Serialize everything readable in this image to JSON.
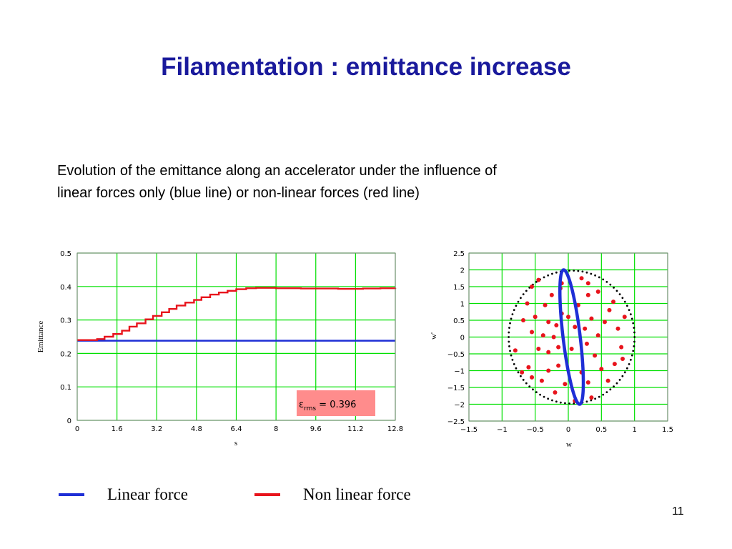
{
  "slide": {
    "title": "Filamentation : emittance increase",
    "description_lines": [
      "Evolution of the emittance along an accelerator under the influence of",
      "linear forces only (blue line) or non-linear forces (red line)"
    ],
    "page_number": "11"
  },
  "legend": [
    {
      "label": "Linear force",
      "color": "#1f2fd6"
    },
    {
      "label": "Non linear force",
      "color": "#e8141c"
    }
  ],
  "colors": {
    "grid": "#00e000",
    "linear": "#1f2fd6",
    "nonlinear": "#e8141c",
    "annotation_bg": "#ff8c8c",
    "title": "#1a1a9c"
  },
  "chart_data": [
    {
      "type": "line",
      "xlabel": "s",
      "ylabel": "Emittance",
      "xlim": [
        0,
        12.8
      ],
      "ylim": [
        0,
        0.5
      ],
      "x_ticks": [
        "0",
        "1.6",
        "3.2",
        "4.8",
        "6.4",
        "8",
        "9.6",
        "11.2",
        "12.8"
      ],
      "y_ticks": [
        "0",
        "0.1",
        "0.2",
        "0.3",
        "0.4",
        "0.5"
      ],
      "grid": true,
      "annotation": {
        "symbol": "ε",
        "subscript": "rms",
        "text": " = 0.396"
      },
      "series": [
        {
          "color": "linear",
          "x": [
            0,
            12.8
          ],
          "y": [
            0.238,
            0.238
          ]
        },
        {
          "color": "nonlinear",
          "step": true,
          "x": [
            0,
            0.8,
            1.1,
            1.45,
            1.8,
            2.1,
            2.4,
            2.75,
            3.05,
            3.4,
            3.7,
            4.0,
            4.35,
            4.7,
            5.0,
            5.35,
            5.7,
            6.05,
            6.4,
            6.8,
            7.2,
            7.6,
            8.0,
            9.0,
            10.5,
            11.5,
            12.2,
            12.8
          ],
          "y": [
            0.24,
            0.243,
            0.25,
            0.258,
            0.268,
            0.28,
            0.29,
            0.302,
            0.312,
            0.323,
            0.333,
            0.343,
            0.352,
            0.36,
            0.368,
            0.376,
            0.382,
            0.387,
            0.392,
            0.395,
            0.396,
            0.396,
            0.395,
            0.394,
            0.393,
            0.394,
            0.395,
            0.396
          ]
        }
      ]
    },
    {
      "type": "scatter",
      "xlabel": "w",
      "ylabel": "w'",
      "xlim": [
        -1.5,
        1.5
      ],
      "ylim": [
        -2.5,
        2.5
      ],
      "x_ticks": [
        "−1.5",
        "−1",
        "−0.5",
        "0",
        "0.5",
        "1",
        "1.5"
      ],
      "y_ticks": [
        "−2.5",
        "−2",
        "−1.5",
        "−1",
        "−0.5",
        "0",
        "0.5",
        "1",
        "1.5",
        "2",
        "2.5"
      ],
      "grid": true,
      "dotted_boundary": {
        "cx": 0.05,
        "cy": 0,
        "rx": 0.95,
        "ry": 1.98,
        "color": "#000000"
      },
      "linear_ellipses": [
        {
          "cx": 0.05,
          "cy": 0,
          "half_height": 2.0,
          "half_width": 0.13,
          "tilt_offset": 0.12,
          "color": "linear"
        }
      ],
      "nonlinear_points": [
        [
          -0.55,
          1.5
        ],
        [
          -0.45,
          1.7
        ],
        [
          -0.62,
          1.0
        ],
        [
          -0.68,
          0.5
        ],
        [
          -0.55,
          0.15
        ],
        [
          -0.8,
          -0.4
        ],
        [
          -0.6,
          -0.9
        ],
        [
          -0.4,
          -1.3
        ],
        [
          -0.2,
          -1.65
        ],
        [
          0.1,
          -1.9
        ],
        [
          0.35,
          -1.8
        ],
        [
          0.6,
          -1.3
        ],
        [
          0.7,
          -0.8
        ],
        [
          0.8,
          -0.3
        ],
        [
          0.75,
          0.25
        ],
        [
          0.62,
          0.8
        ],
        [
          0.45,
          1.35
        ],
        [
          0.2,
          1.75
        ],
        [
          -0.1,
          1.6
        ],
        [
          0.3,
          1.6
        ],
        [
          -0.35,
          0.95
        ],
        [
          -0.3,
          0.45
        ],
        [
          -0.38,
          0.05
        ],
        [
          -0.3,
          -0.45
        ],
        [
          -0.15,
          -0.85
        ],
        [
          0.2,
          -1.05
        ],
        [
          0.4,
          -0.55
        ],
        [
          0.45,
          0.05
        ],
        [
          0.35,
          0.55
        ],
        [
          0.15,
          0.95
        ],
        [
          -0.1,
          0.7
        ],
        [
          -0.18,
          0.35
        ],
        [
          -0.22,
          0.0
        ],
        [
          0.05,
          -0.35
        ],
        [
          0.28,
          -0.2
        ],
        [
          0.25,
          0.25
        ],
        [
          0.0,
          0.6
        ],
        [
          -0.15,
          -0.3
        ],
        [
          0.1,
          0.3
        ],
        [
          -0.5,
          0.6
        ],
        [
          -0.45,
          -0.35
        ],
        [
          0.5,
          -0.95
        ],
        [
          0.55,
          0.45
        ],
        [
          -0.25,
          1.25
        ],
        [
          0.3,
          -1.35
        ],
        [
          -0.55,
          -1.2
        ],
        [
          0.68,
          1.05
        ],
        [
          -0.05,
          -1.4
        ],
        [
          -0.7,
          -1.05
        ],
        [
          0.82,
          -0.65
        ],
        [
          0.85,
          0.6
        ],
        [
          -0.12,
          1.45
        ],
        [
          0.3,
          1.25
        ],
        [
          -0.3,
          -1.0
        ]
      ]
    }
  ]
}
